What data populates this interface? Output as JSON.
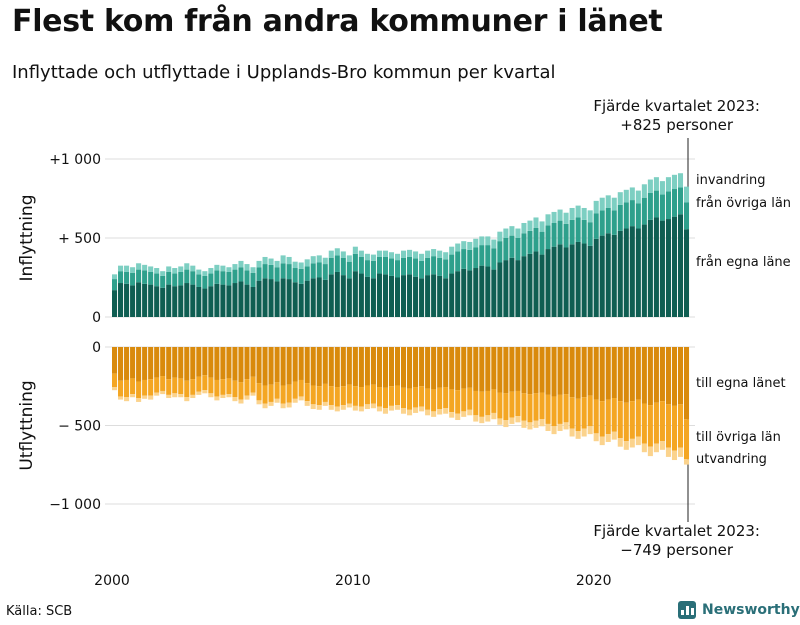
{
  "title": "Flest kom från andra kommuner i länet",
  "subtitle": "Inflyttade och utflyttade i Upplands-Bro kommun per kvartal",
  "annotation_top": {
    "line1": "Fjärde kvartalet 2023:",
    "line2": "+825 personer"
  },
  "annotation_bottom": {
    "line1": "Fjärde kvartalet 2023:",
    "line2": "−749 personer"
  },
  "source": "Källa: SCB",
  "brand": "Newsworthy",
  "colors": {
    "inflow_own_county": "#0f5e52",
    "inflow_other_county": "#2ea08c",
    "inflow_abroad": "#7dcfc2",
    "outflow_own_county": "#d98a0c",
    "outflow_other_county": "#f4a623",
    "outflow_abroad": "#fbd38d",
    "gridline": "#dddddd",
    "brand": "#2a6f78"
  },
  "chart_data": [
    {
      "type": "bar",
      "stacked": true,
      "panel": "inflyttning",
      "ylabel": "Inflyttning",
      "ylim": [
        0,
        1000
      ],
      "yticks": [
        0,
        500,
        1000
      ],
      "ytick_labels": [
        "0",
        "+ 500",
        "+1 000"
      ],
      "x_start": "2000 Q1",
      "x_end": "2023 Q4",
      "x_tick_labels": [
        "2000",
        "2010",
        "2020"
      ],
      "grid": true,
      "series": [
        {
          "name": "från egna läne",
          "values": [
            170,
            215,
            210,
            200,
            220,
            210,
            205,
            195,
            185,
            205,
            195,
            200,
            215,
            205,
            190,
            180,
            195,
            210,
            205,
            200,
            215,
            225,
            205,
            190,
            230,
            245,
            240,
            225,
            245,
            240,
            220,
            210,
            230,
            245,
            250,
            235,
            270,
            285,
            265,
            245,
            290,
            275,
            255,
            245,
            275,
            270,
            260,
            250,
            265,
            270,
            255,
            245,
            265,
            270,
            260,
            245,
            275,
            290,
            305,
            295,
            310,
            325,
            320,
            300,
            345,
            360,
            375,
            360,
            385,
            400,
            415,
            395,
            430,
            445,
            460,
            440,
            460,
            475,
            465,
            450,
            495,
            515,
            530,
            520,
            545,
            560,
            575,
            560,
            585,
            615,
            630,
            610,
            620,
            635,
            650,
            555
          ]
        },
        {
          "name": "från övriga län",
          "values": [
            70,
            75,
            75,
            80,
            80,
            85,
            80,
            80,
            75,
            80,
            80,
            85,
            85,
            85,
            80,
            80,
            80,
            85,
            85,
            85,
            85,
            90,
            90,
            90,
            85,
            90,
            90,
            90,
            95,
            95,
            90,
            95,
            90,
            95,
            95,
            100,
            105,
            105,
            110,
            105,
            110,
            105,
            105,
            110,
            105,
            110,
            110,
            110,
            110,
            110,
            115,
            110,
            110,
            115,
            115,
            120,
            120,
            125,
            125,
            130,
            130,
            130,
            135,
            135,
            135,
            140,
            140,
            140,
            145,
            145,
            150,
            145,
            150,
            150,
            150,
            150,
            155,
            155,
            150,
            150,
            160,
            160,
            160,
            155,
            165,
            165,
            165,
            160,
            170,
            170,
            170,
            165,
            175,
            175,
            170,
            170
          ]
        },
        {
          "name": "invandring",
          "values": [
            30,
            35,
            40,
            35,
            40,
            35,
            35,
            35,
            30,
            35,
            35,
            35,
            40,
            35,
            30,
            30,
            35,
            35,
            35,
            30,
            35,
            40,
            40,
            35,
            40,
            45,
            40,
            40,
            50,
            45,
            40,
            40,
            45,
            45,
            45,
            40,
            45,
            45,
            40,
            40,
            45,
            40,
            40,
            40,
            40,
            40,
            40,
            40,
            45,
            45,
            45,
            45,
            45,
            45,
            45,
            45,
            50,
            50,
            50,
            50,
            55,
            55,
            55,
            55,
            60,
            60,
            60,
            60,
            65,
            65,
            65,
            65,
            70,
            70,
            70,
            70,
            75,
            75,
            75,
            75,
            80,
            80,
            80,
            80,
            80,
            80,
            80,
            80,
            85,
            85,
            85,
            85,
            90,
            90,
            90,
            100
          ]
        }
      ]
    },
    {
      "type": "bar",
      "stacked": true,
      "panel": "utflyttning",
      "ylabel": "Utflyttning",
      "ylim": [
        -1000,
        0
      ],
      "yticks": [
        0,
        -500,
        -1000
      ],
      "ytick_labels": [
        "0",
        "− 500",
        "−1 000"
      ],
      "x_start": "2000 Q1",
      "x_end": "2023 Q4",
      "x_tick_labels": [
        "2000",
        "2010",
        "2020"
      ],
      "grid": true,
      "series": [
        {
          "name": "till egna länet",
          "values": [
            -170,
            -215,
            -210,
            -200,
            -220,
            -210,
            -205,
            -195,
            -185,
            -205,
            -195,
            -200,
            -215,
            -205,
            -190,
            -180,
            -195,
            -210,
            -205,
            -200,
            -215,
            -225,
            -205,
            -190,
            -230,
            -245,
            -240,
            -225,
            -245,
            -240,
            -220,
            -210,
            -230,
            -245,
            -250,
            -235,
            -250,
            -255,
            -250,
            -240,
            -250,
            -255,
            -245,
            -240,
            -255,
            -260,
            -250,
            -245,
            -260,
            -265,
            -255,
            -250,
            -265,
            -270,
            -260,
            -255,
            -270,
            -275,
            -265,
            -260,
            -280,
            -285,
            -280,
            -270,
            -290,
            -295,
            -285,
            -280,
            -295,
            -300,
            -295,
            -290,
            -305,
            -315,
            -305,
            -300,
            -320,
            -330,
            -320,
            -310,
            -335,
            -345,
            -335,
            -325,
            -345,
            -355,
            -345,
            -335,
            -360,
            -370,
            -355,
            -345,
            -365,
            -375,
            -365,
            -460
          ]
        },
        {
          "name": "till övriga län",
          "values": [
            -85,
            -100,
            -110,
            -100,
            -105,
            -100,
            -105,
            -95,
            -95,
            -100,
            -100,
            -100,
            -105,
            -100,
            -95,
            -95,
            -100,
            -105,
            -100,
            -100,
            -105,
            -110,
            -105,
            -100,
            -110,
            -115,
            -110,
            -105,
            -115,
            -115,
            -110,
            -105,
            -115,
            -120,
            -120,
            -115,
            -120,
            -125,
            -120,
            -120,
            -125,
            -125,
            -120,
            -120,
            -125,
            -130,
            -125,
            -125,
            -130,
            -135,
            -130,
            -130,
            -135,
            -140,
            -135,
            -135,
            -145,
            -150,
            -145,
            -140,
            -155,
            -160,
            -155,
            -150,
            -165,
            -170,
            -165,
            -160,
            -175,
            -180,
            -175,
            -170,
            -185,
            -190,
            -185,
            -180,
            -200,
            -205,
            -200,
            -195,
            -215,
            -225,
            -220,
            -215,
            -235,
            -245,
            -240,
            -235,
            -255,
            -265,
            -260,
            -255,
            -275,
            -285,
            -275,
            -255
          ]
        },
        {
          "name": "utvandring",
          "values": [
            -20,
            -20,
            -25,
            -20,
            -25,
            -20,
            -25,
            -20,
            -20,
            -20,
            -25,
            -20,
            -25,
            -20,
            -20,
            -20,
            -25,
            -25,
            -20,
            -20,
            -25,
            -25,
            -25,
            -20,
            -25,
            -30,
            -25,
            -25,
            -30,
            -30,
            -25,
            -25,
            -30,
            -30,
            -30,
            -25,
            -30,
            -30,
            -30,
            -25,
            -30,
            -30,
            -30,
            -30,
            -30,
            -35,
            -30,
            -30,
            -35,
            -35,
            -35,
            -30,
            -35,
            -35,
            -35,
            -35,
            -35,
            -40,
            -35,
            -35,
            -40,
            -40,
            -40,
            -40,
            -40,
            -45,
            -40,
            -40,
            -45,
            -45,
            -45,
            -45,
            -45,
            -50,
            -45,
            -45,
            -50,
            -50,
            -50,
            -50,
            -50,
            -55,
            -50,
            -50,
            -55,
            -55,
            -55,
            -55,
            -55,
            -60,
            -55,
            -55,
            -60,
            -60,
            -60,
            -34
          ]
        }
      ]
    }
  ]
}
